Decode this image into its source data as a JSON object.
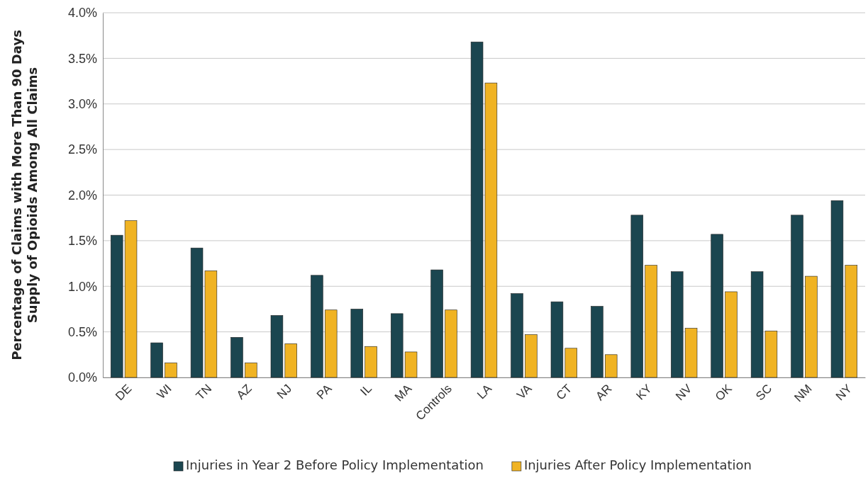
{
  "chart_data": {
    "type": "bar",
    "ylabel": "Percentage of Claims with More Than 90 Days Supply of Opioids Among All Claims",
    "categories": [
      "DE",
      "WI",
      "TN",
      "AZ",
      "NJ",
      "PA",
      "IL",
      "MA",
      "Controls",
      "LA",
      "VA",
      "CT",
      "AR",
      "KY",
      "NV",
      "OK",
      "SC",
      "NM",
      "NY"
    ],
    "series": [
      {
        "name": "Injuries in Year 2 Before Policy Implementation",
        "color": "#1b4650",
        "values": [
          1.56,
          0.38,
          1.42,
          0.44,
          0.68,
          1.12,
          0.75,
          0.7,
          1.18,
          3.68,
          0.92,
          0.83,
          0.78,
          1.78,
          1.16,
          1.57,
          1.16,
          1.78,
          1.94
        ]
      },
      {
        "name": "Injuries After Policy Implementation",
        "color": "#f0b323",
        "values": [
          1.72,
          0.16,
          1.17,
          0.16,
          0.37,
          0.74,
          0.34,
          0.28,
          0.74,
          3.23,
          0.47,
          0.32,
          0.25,
          1.23,
          0.54,
          0.94,
          0.51,
          1.11,
          1.23
        ]
      }
    ],
    "ylim": [
      0,
      4
    ],
    "yticks": [
      {
        "value": 0,
        "label": "0.0%"
      },
      {
        "value": 0.5,
        "label": "0.5%"
      },
      {
        "value": 1,
        "label": "1.0%"
      },
      {
        "value": 1.5,
        "label": "1.5%"
      },
      {
        "value": 2,
        "label": "2.0%"
      },
      {
        "value": 2.5,
        "label": "2.5%"
      },
      {
        "value": 3,
        "label": "3.0%"
      },
      {
        "value": 3.5,
        "label": "3.5%"
      },
      {
        "value": 4,
        "label": "4.0%"
      }
    ],
    "grid": "y",
    "legend": "bottom"
  }
}
